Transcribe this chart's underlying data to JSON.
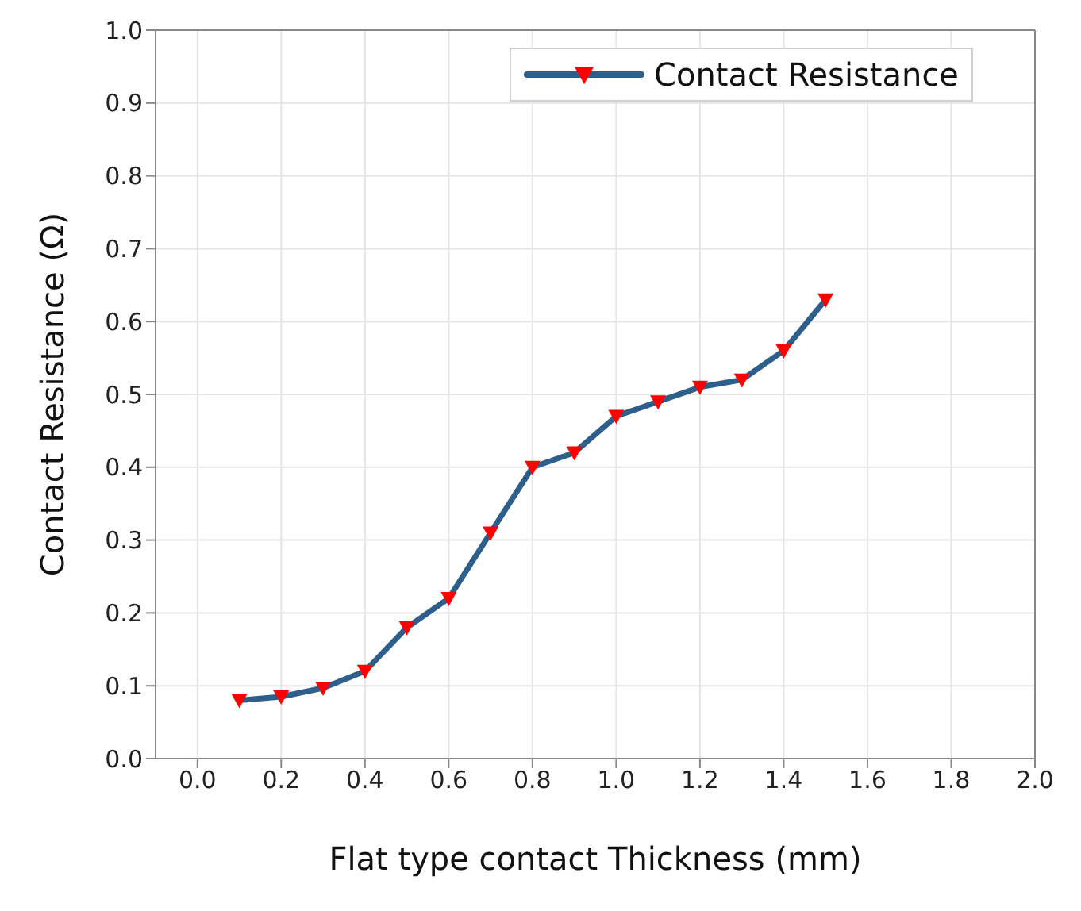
{
  "chart_data": {
    "type": "line",
    "xlabel": "Flat type contact Thickness (mm)",
    "ylabel": "Contact Resistance (Ω)",
    "x": [
      0.1,
      0.2,
      0.3,
      0.4,
      0.5,
      0.6,
      0.7,
      0.8,
      0.9,
      1.0,
      1.1,
      1.2,
      1.3,
      1.4,
      1.5
    ],
    "series": [
      {
        "name": "Contact Resistance",
        "color": "#2e5f8a",
        "values": [
          0.08,
          0.085,
          0.097,
          0.12,
          0.18,
          0.22,
          0.31,
          0.4,
          0.42,
          0.47,
          0.49,
          0.51,
          0.52,
          0.56,
          0.63
        ]
      }
    ],
    "xlim": [
      -0.1,
      2.0
    ],
    "xticks": [
      {
        "value": 0,
        "label": "0.0"
      },
      {
        "value": 0.2,
        "label": "0.2"
      },
      {
        "value": 0.4,
        "label": "0.4"
      },
      {
        "value": 0.6,
        "label": "0.6"
      },
      {
        "value": 0.8,
        "label": "0.8"
      },
      {
        "value": 1,
        "label": "1.0"
      },
      {
        "value": 1.2,
        "label": "1.2"
      },
      {
        "value": 1.4,
        "label": "1.4"
      },
      {
        "value": 1.6,
        "label": "1.6"
      },
      {
        "value": 1.8,
        "label": "1.8"
      },
      {
        "value": 2,
        "label": "2.0"
      }
    ],
    "ylim": [
      0,
      1
    ],
    "yticks": [
      {
        "value": 0,
        "label": "0.0"
      },
      0.1,
      0.2,
      0.3,
      0.4,
      0.5,
      0.6,
      0.7,
      0.8,
      0.9,
      {
        "value": 1,
        "label": "1.0"
      }
    ],
    "grid": true,
    "legend": "top right",
    "marker": "triangle",
    "line_style": "solid"
  }
}
